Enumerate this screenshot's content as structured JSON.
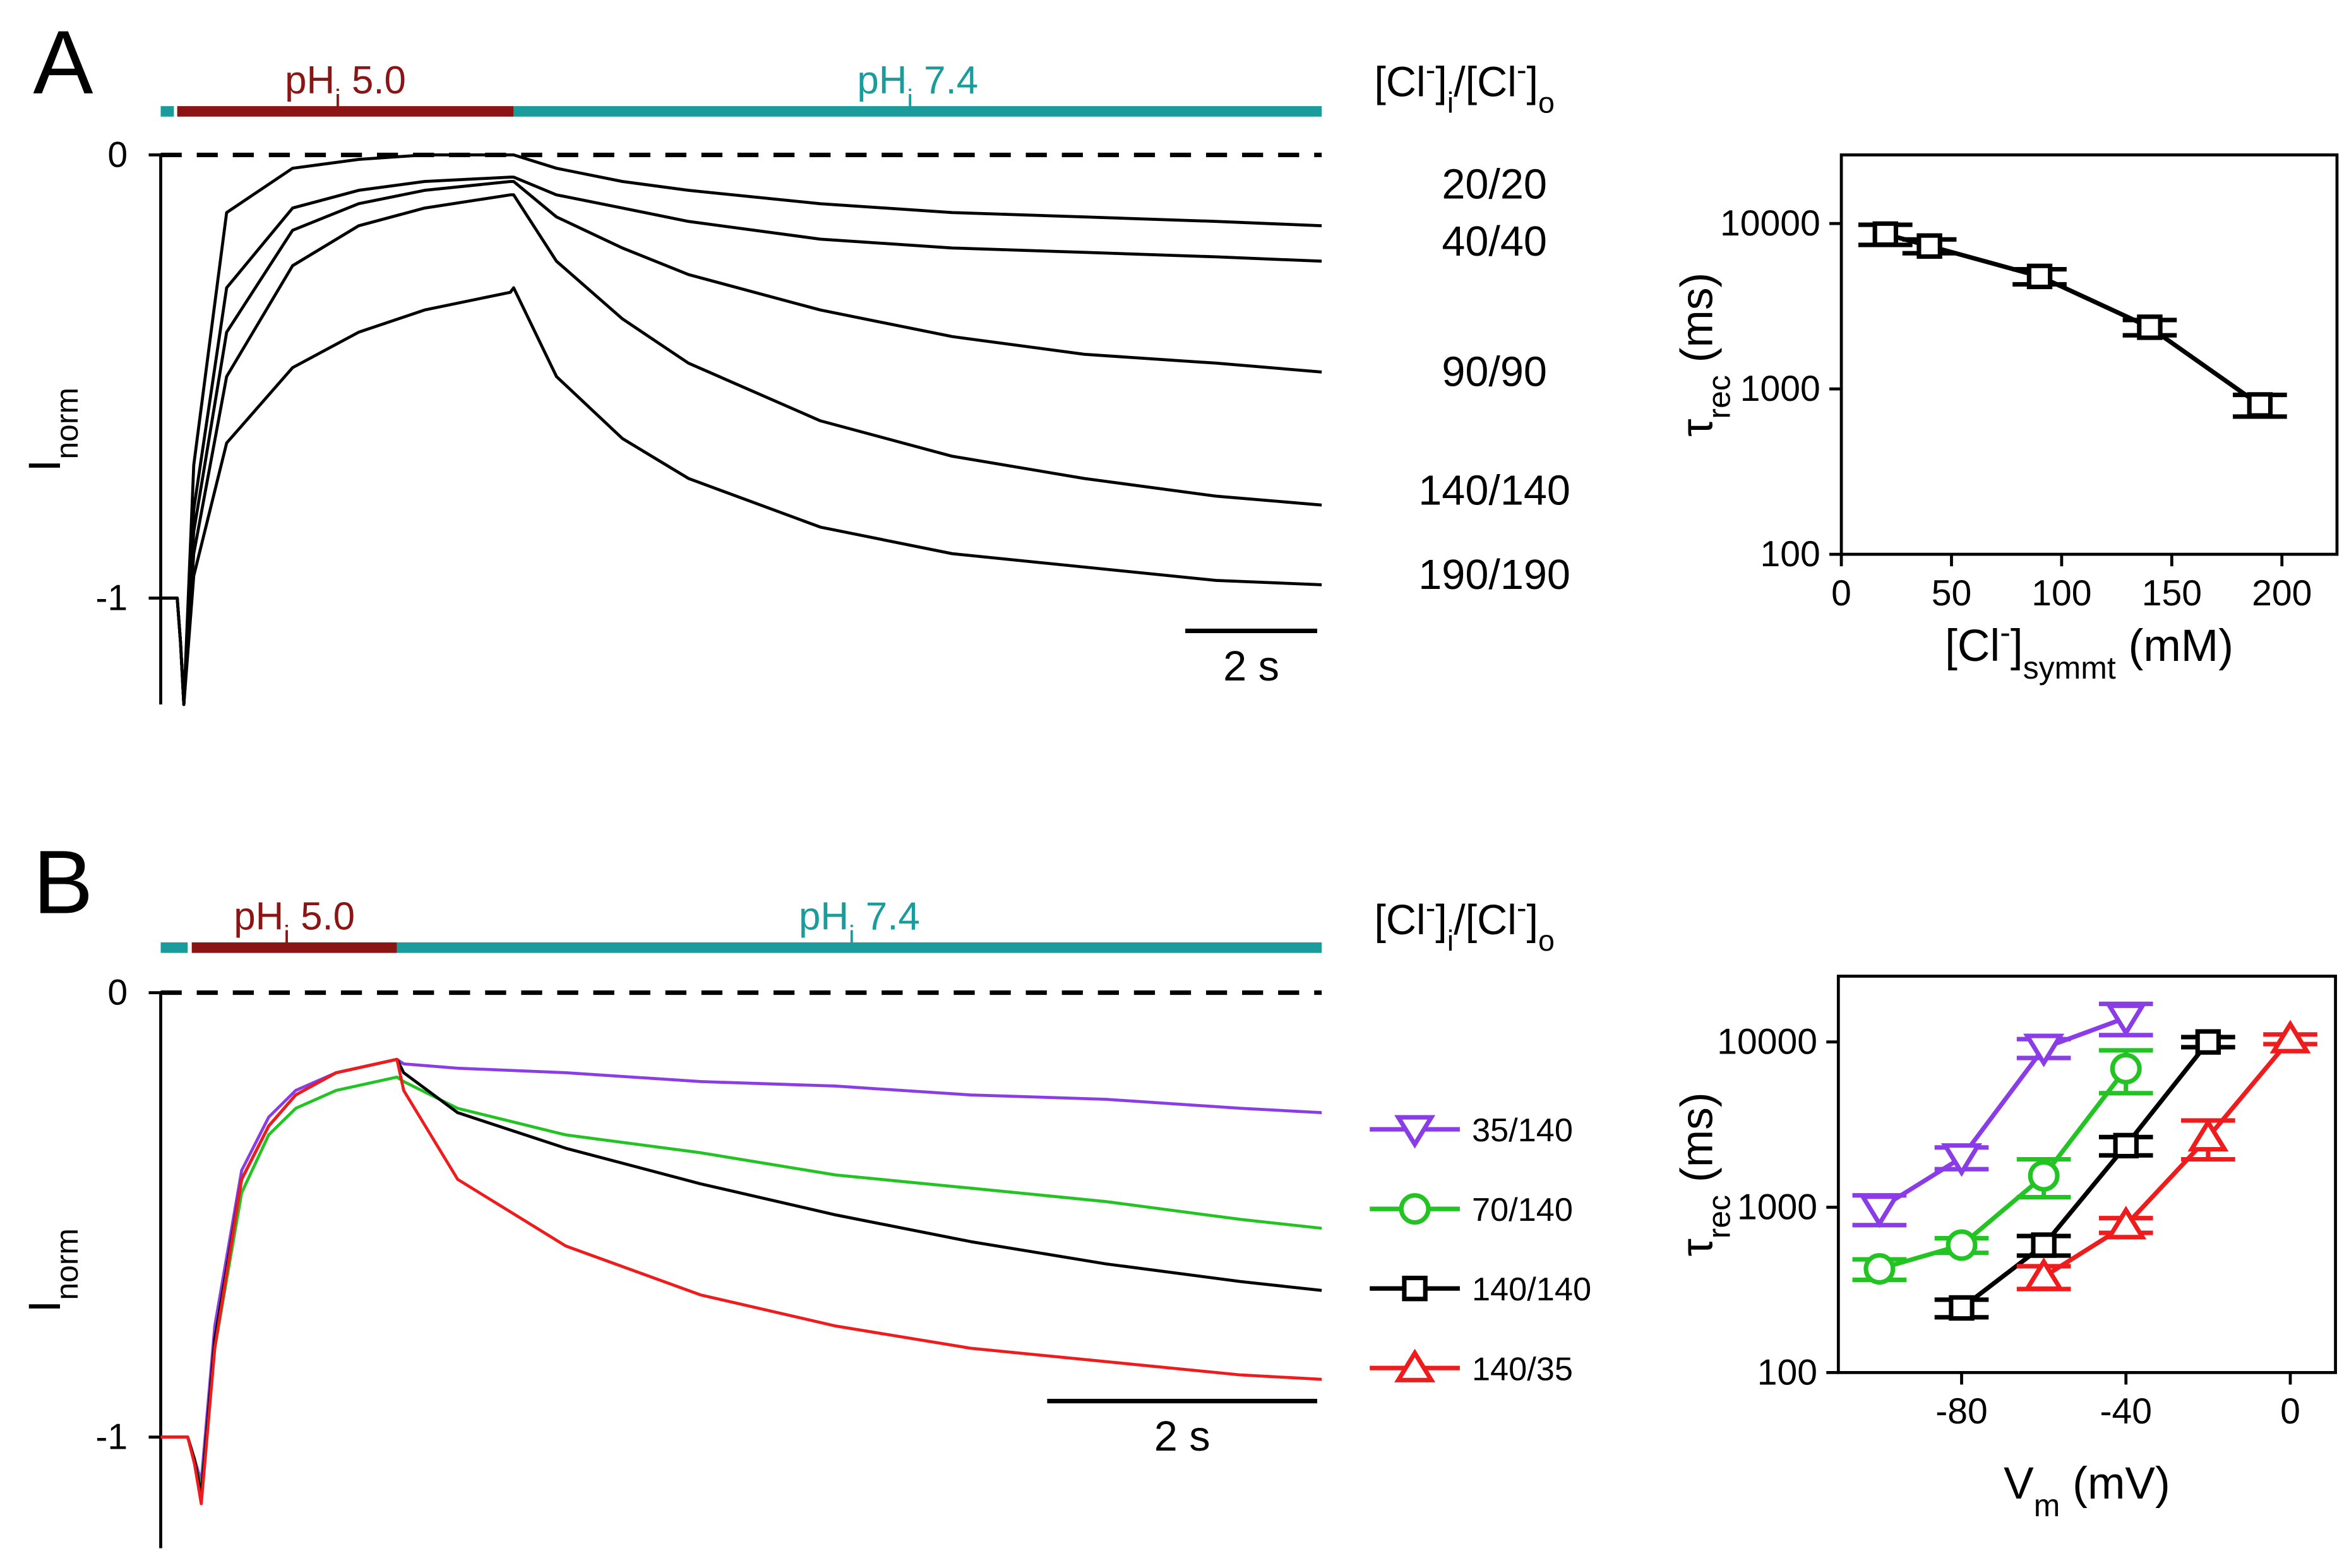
{
  "chart_data": [
    {
      "type": "line",
      "panel_label": "A",
      "ylabel": [
        [
          "I",
          ""
        ],
        [
          "norm",
          "sub"
        ]
      ],
      "ylim": [
        -1.24,
        0
      ],
      "yticks": [
        0,
        -1
      ],
      "xlim": [
        0,
        17.6
      ],
      "zero_line": "dashed",
      "legend_title": [
        [
          "[Cl",
          ""
        ],
        [
          "-",
          "sup"
        ],
        [
          "]",
          ""
        ],
        [
          "i",
          "sub"
        ],
        [
          "/[Cl",
          ""
        ],
        [
          "-",
          "sup"
        ],
        [
          "]",
          ""
        ],
        [
          "o",
          "sub"
        ]
      ],
      "scale_bar": {
        "value": 2,
        "label": "2 s"
      },
      "periods": [
        {
          "start": 0,
          "end": 0.2,
          "color": "#1a9c9c"
        },
        {
          "start": 0.25,
          "end": 5.35,
          "color": "#8b1414",
          "label": [
            [
              "pH",
              ""
            ],
            [
              "i",
              "sub"
            ],
            [
              " 5.0",
              ""
            ]
          ]
        },
        {
          "start": 5.35,
          "end": 17.6,
          "color": "#1a9c9c",
          "label": [
            [
              "pH",
              ""
            ],
            [
              "i",
              "sub"
            ],
            [
              " 7.4",
              ""
            ]
          ]
        }
      ],
      "x": [
        0,
        0.25,
        0.3,
        0.35,
        0.5,
        1,
        2,
        3,
        4,
        5.3,
        5.35,
        6,
        7,
        8,
        10,
        12,
        14,
        16,
        17.6
      ],
      "series": [
        {
          "name": "20/20",
          "color": "#000000",
          "values": [
            -1,
            -1,
            -1.1,
            -1.24,
            -0.7,
            -0.13,
            -0.03,
            -0.01,
            0,
            0,
            0,
            -0.03,
            -0.06,
            -0.08,
            -0.11,
            -0.13,
            -0.14,
            -0.15,
            -0.16
          ]
        },
        {
          "name": "40/40",
          "color": "#000000",
          "values": [
            -1,
            -1,
            -1.1,
            -1.24,
            -0.8,
            -0.3,
            -0.12,
            -0.08,
            -0.06,
            -0.05,
            -0.05,
            -0.09,
            -0.12,
            -0.15,
            -0.19,
            -0.21,
            -0.22,
            -0.23,
            -0.24
          ]
        },
        {
          "name": "90/90",
          "color": "#000000",
          "values": [
            -1,
            -1,
            -1.1,
            -1.24,
            -0.85,
            -0.4,
            -0.17,
            -0.11,
            -0.08,
            -0.06,
            -0.06,
            -0.14,
            -0.21,
            -0.27,
            -0.35,
            -0.41,
            -0.45,
            -0.47,
            -0.49
          ]
        },
        {
          "name": "140/140",
          "color": "#000000",
          "values": [
            -1,
            -1,
            -1.1,
            -1.24,
            -0.9,
            -0.5,
            -0.25,
            -0.16,
            -0.12,
            -0.09,
            -0.09,
            -0.24,
            -0.37,
            -0.47,
            -0.6,
            -0.68,
            -0.73,
            -0.77,
            -0.79
          ]
        },
        {
          "name": "190/190",
          "color": "#000000",
          "values": [
            -1,
            -1,
            -1.1,
            -1.24,
            -0.95,
            -0.65,
            -0.48,
            -0.4,
            -0.35,
            -0.31,
            -0.3,
            -0.5,
            -0.64,
            -0.73,
            -0.84,
            -0.9,
            -0.93,
            -0.96,
            -0.97
          ]
        }
      ]
    },
    {
      "type": "scatter",
      "yscale": "log",
      "connect": true,
      "xlabel": [
        [
          "[Cl",
          ""
        ],
        [
          "-",
          "sup"
        ],
        [
          "]",
          ""
        ],
        [
          "symmt",
          "sub"
        ],
        [
          " (mM)",
          ""
        ]
      ],
      "ylabel": [
        [
          "τ",
          ""
        ],
        [
          "rec",
          "sub"
        ],
        [
          " (ms)",
          ""
        ]
      ],
      "xlim": [
        0,
        225
      ],
      "xticks": [
        0,
        50,
        100,
        150,
        200
      ],
      "ylim": [
        100,
        26000
      ],
      "yticks": [
        100,
        1000,
        10000
      ],
      "series": [
        {
          "color": "#000000",
          "marker": "square",
          "x": [
            20,
            40,
            90,
            140,
            190
          ],
          "values": [
            8630,
            7310,
            4790,
            2360,
            800
          ],
          "errors": [
            1200,
            700,
            500,
            250,
            120
          ]
        }
      ]
    },
    {
      "type": "line",
      "panel_label": "B",
      "ylabel": [
        [
          "I",
          ""
        ],
        [
          "norm",
          "sub"
        ]
      ],
      "ylim": [
        -1.25,
        0
      ],
      "yticks": [
        0,
        -1
      ],
      "xlim": [
        0,
        8.6
      ],
      "zero_line": "dashed",
      "scale_bar": {
        "value": 2,
        "label": "2 s"
      },
      "periods": [
        {
          "start": 0,
          "end": 0.2,
          "color": "#1a9c9c"
        },
        {
          "start": 0.23,
          "end": 1.75,
          "color": "#8b1414",
          "label": [
            [
              "pH",
              ""
            ],
            [
              "i",
              "sub"
            ],
            [
              " 5.0",
              ""
            ]
          ]
        },
        {
          "start": 1.75,
          "end": 8.6,
          "color": "#1a9c9c",
          "label": [
            [
              "pH",
              ""
            ],
            [
              "i",
              "sub"
            ],
            [
              " 7.4",
              ""
            ]
          ]
        }
      ],
      "x": [
        0,
        0.2,
        0.25,
        0.3,
        0.4,
        0.6,
        0.8,
        1.0,
        1.3,
        1.75,
        1.8,
        2.2,
        3,
        4,
        5,
        6,
        7,
        8,
        8.6
      ],
      "series": [
        {
          "color": "#8a3ce6",
          "values": [
            -1,
            -1,
            -1.05,
            -1.1,
            -0.75,
            -0.4,
            -0.28,
            -0.22,
            -0.18,
            -0.15,
            -0.16,
            -0.17,
            -0.18,
            -0.2,
            -0.21,
            -0.23,
            -0.24,
            -0.26,
            -0.27
          ]
        },
        {
          "color": "#22c322",
          "values": [
            -1,
            -1,
            -1.05,
            -1.12,
            -0.8,
            -0.45,
            -0.32,
            -0.26,
            -0.22,
            -0.19,
            -0.2,
            -0.26,
            -0.32,
            -0.36,
            -0.41,
            -0.44,
            -0.47,
            -0.51,
            -0.53
          ]
        },
        {
          "color": "#000000",
          "values": [
            -1,
            -1,
            -1.05,
            -1.13,
            -0.78,
            -0.42,
            -0.3,
            -0.23,
            -0.18,
            -0.15,
            -0.18,
            -0.27,
            -0.35,
            -0.43,
            -0.5,
            -0.56,
            -0.61,
            -0.65,
            -0.67
          ]
        },
        {
          "color": "#ee1c1c",
          "values": [
            -1,
            -1,
            -1.06,
            -1.15,
            -0.8,
            -0.42,
            -0.3,
            -0.23,
            -0.18,
            -0.15,
            -0.22,
            -0.42,
            -0.57,
            -0.68,
            -0.75,
            -0.8,
            -0.83,
            -0.86,
            -0.87
          ]
        }
      ]
    },
    {
      "type": "scatter",
      "yscale": "log",
      "connect": true,
      "legend_title": [
        [
          "[Cl",
          ""
        ],
        [
          "-",
          "sup"
        ],
        [
          "]",
          ""
        ],
        [
          "i",
          "sub"
        ],
        [
          "/[Cl",
          ""
        ],
        [
          "-",
          "sup"
        ],
        [
          "]",
          ""
        ],
        [
          "o",
          "sub"
        ]
      ],
      "xlabel": [
        [
          "V",
          ""
        ],
        [
          "m",
          "sub"
        ],
        [
          " (mV)",
          ""
        ]
      ],
      "ylabel": [
        [
          "τ",
          ""
        ],
        [
          "rec",
          "sub"
        ],
        [
          " (ms)",
          ""
        ]
      ],
      "xlim": [
        -110,
        11
      ],
      "xticks": [
        -80,
        -40,
        0
      ],
      "ylim": [
        100,
        25000
      ],
      "yticks": [
        100,
        1000,
        10000
      ],
      "series": [
        {
          "name": "35/140",
          "color": "#8a3ce6",
          "marker": "triangle-down",
          "x": [
            -100,
            -80,
            -60,
            -40
          ],
          "values": [
            980,
            2000,
            9200,
            14000
          ],
          "errors": [
            200,
            300,
            1200,
            3000
          ]
        },
        {
          "name": "70/140",
          "color": "#22c322",
          "marker": "circle",
          "x": [
            -100,
            -80,
            -60,
            -40
          ],
          "values": [
            424,
            590,
            1550,
            6900
          ],
          "errors": [
            60,
            60,
            400,
            2000
          ]
        },
        {
          "name": "140/140",
          "color": "#000000",
          "marker": "square",
          "x": [
            -80,
            -60,
            -40,
            -20
          ],
          "values": [
            246,
            590,
            2360,
            10000
          ],
          "errors": [
            30,
            80,
            300,
            700
          ]
        },
        {
          "name": "140/35",
          "color": "#ee1c1c",
          "marker": "triangle-up",
          "x": [
            -60,
            -40,
            -20,
            0
          ],
          "values": [
            380,
            780,
            2650,
            10400
          ],
          "errors": [
            60,
            80,
            700,
            700
          ]
        }
      ]
    }
  ]
}
